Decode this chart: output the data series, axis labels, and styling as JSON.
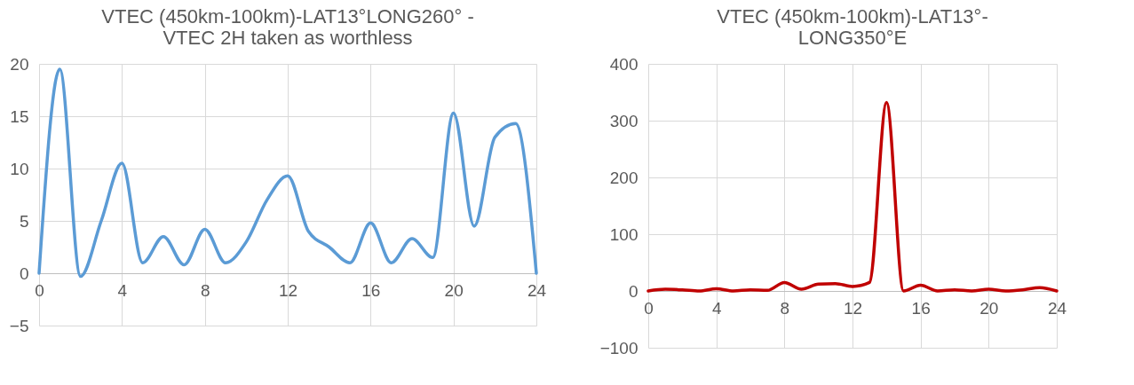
{
  "chart_data": [
    {
      "type": "line",
      "title": "VTEC (450km-100km)-LAT13°LONG260° -\nVTEC 2H taken as worthless",
      "x": [
        0,
        1,
        2,
        3,
        4,
        5,
        6,
        7,
        8,
        9,
        10,
        11,
        12,
        13,
        14,
        15,
        16,
        17,
        18,
        19,
        20,
        21,
        22,
        23,
        24
      ],
      "series": [
        {
          "color": "#5b9bd5",
          "values": [
            0,
            19.5,
            -0.3,
            5,
            10.5,
            1,
            3.5,
            0.8,
            4.2,
            1,
            3,
            7,
            9.3,
            4,
            2.5,
            1,
            4.8,
            1,
            3.3,
            1.5,
            15.3,
            4.5,
            13,
            14.3,
            0
          ]
        }
      ],
      "xlim": [
        0,
        24
      ],
      "xticks": [
        0,
        4,
        8,
        12,
        16,
        20,
        24
      ],
      "ylim": [
        -5,
        20
      ],
      "yticks": [
        -5,
        0,
        5,
        10,
        15,
        20
      ],
      "grid": true
    },
    {
      "type": "line",
      "title": "VTEC (450km-100km)-LAT13°-\nLONG350°E",
      "x": [
        0,
        1,
        2,
        3,
        4,
        5,
        6,
        7,
        8,
        9,
        10,
        11,
        12,
        13,
        14,
        15,
        16,
        17,
        18,
        19,
        20,
        21,
        22,
        23,
        24
      ],
      "series": [
        {
          "color": "#c00000",
          "values": [
            0,
            3,
            2,
            0,
            4,
            0,
            2,
            1,
            15,
            3,
            12,
            13,
            8,
            15,
            332,
            0,
            10,
            0,
            2,
            0,
            3,
            0,
            2,
            6,
            0
          ]
        }
      ],
      "xlim": [
        0,
        24
      ],
      "xticks": [
        0,
        4,
        8,
        12,
        16,
        20,
        24
      ],
      "ylim": [
        -100,
        400
      ],
      "yticks": [
        -100,
        0,
        100,
        200,
        300,
        400
      ],
      "grid": true
    }
  ]
}
